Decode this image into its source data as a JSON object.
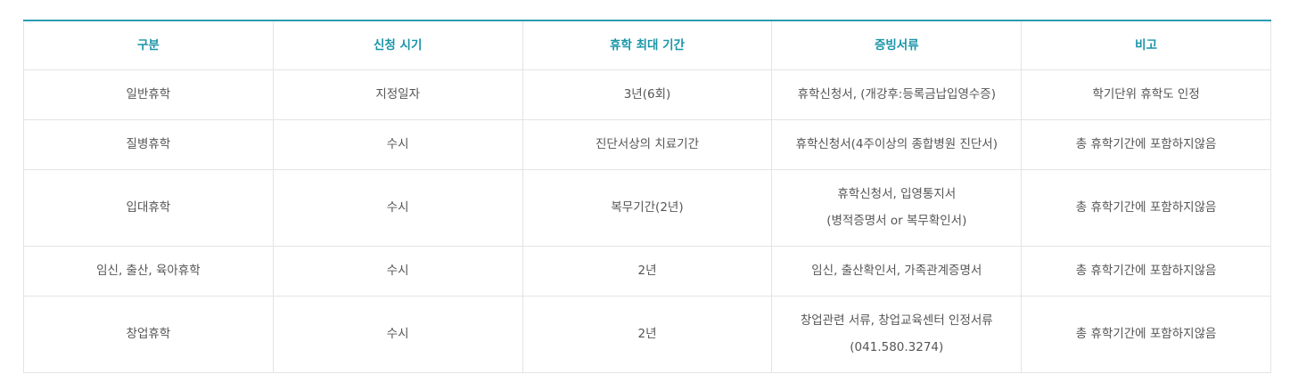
{
  "table": {
    "headers": [
      "구분",
      "신청 시기",
      "휴학 최대 기간",
      "증빙서류",
      "비고"
    ],
    "rows": [
      {
        "type": "일반휴학",
        "timing": "지정일자",
        "period": "3년(6회)",
        "docs": [
          "휴학신청서, (개강후:등록금납입영수증)"
        ],
        "note": "학기단위 휴학도 인정"
      },
      {
        "type": "질병휴학",
        "timing": "수시",
        "period": "진단서상의 치료기간",
        "docs": [
          "휴학신청서(4주이상의 종합병원 진단서)"
        ],
        "note": "총 휴학기간에 포함하지않음"
      },
      {
        "type": "입대휴학",
        "timing": "수시",
        "period": "복무기간(2년)",
        "docs": [
          "휴학신청서, 입영통지서",
          "(병적증명서 or 복무확인서)"
        ],
        "note": "총 휴학기간에 포함하지않음"
      },
      {
        "type": "임신, 출산, 육아휴학",
        "timing": "수시",
        "period": "2년",
        "docs": [
          "임신, 출산확인서, 가족관계증명서"
        ],
        "note": "총 휴학기간에 포함하지않음"
      },
      {
        "type": "창업휴학",
        "timing": "수시",
        "period": "2년",
        "docs": [
          "창업관련 서류, 창업교육센터 인정서류",
          "(041.580.3274)"
        ],
        "note": "총 휴학기간에 포함하지않음"
      }
    ]
  }
}
